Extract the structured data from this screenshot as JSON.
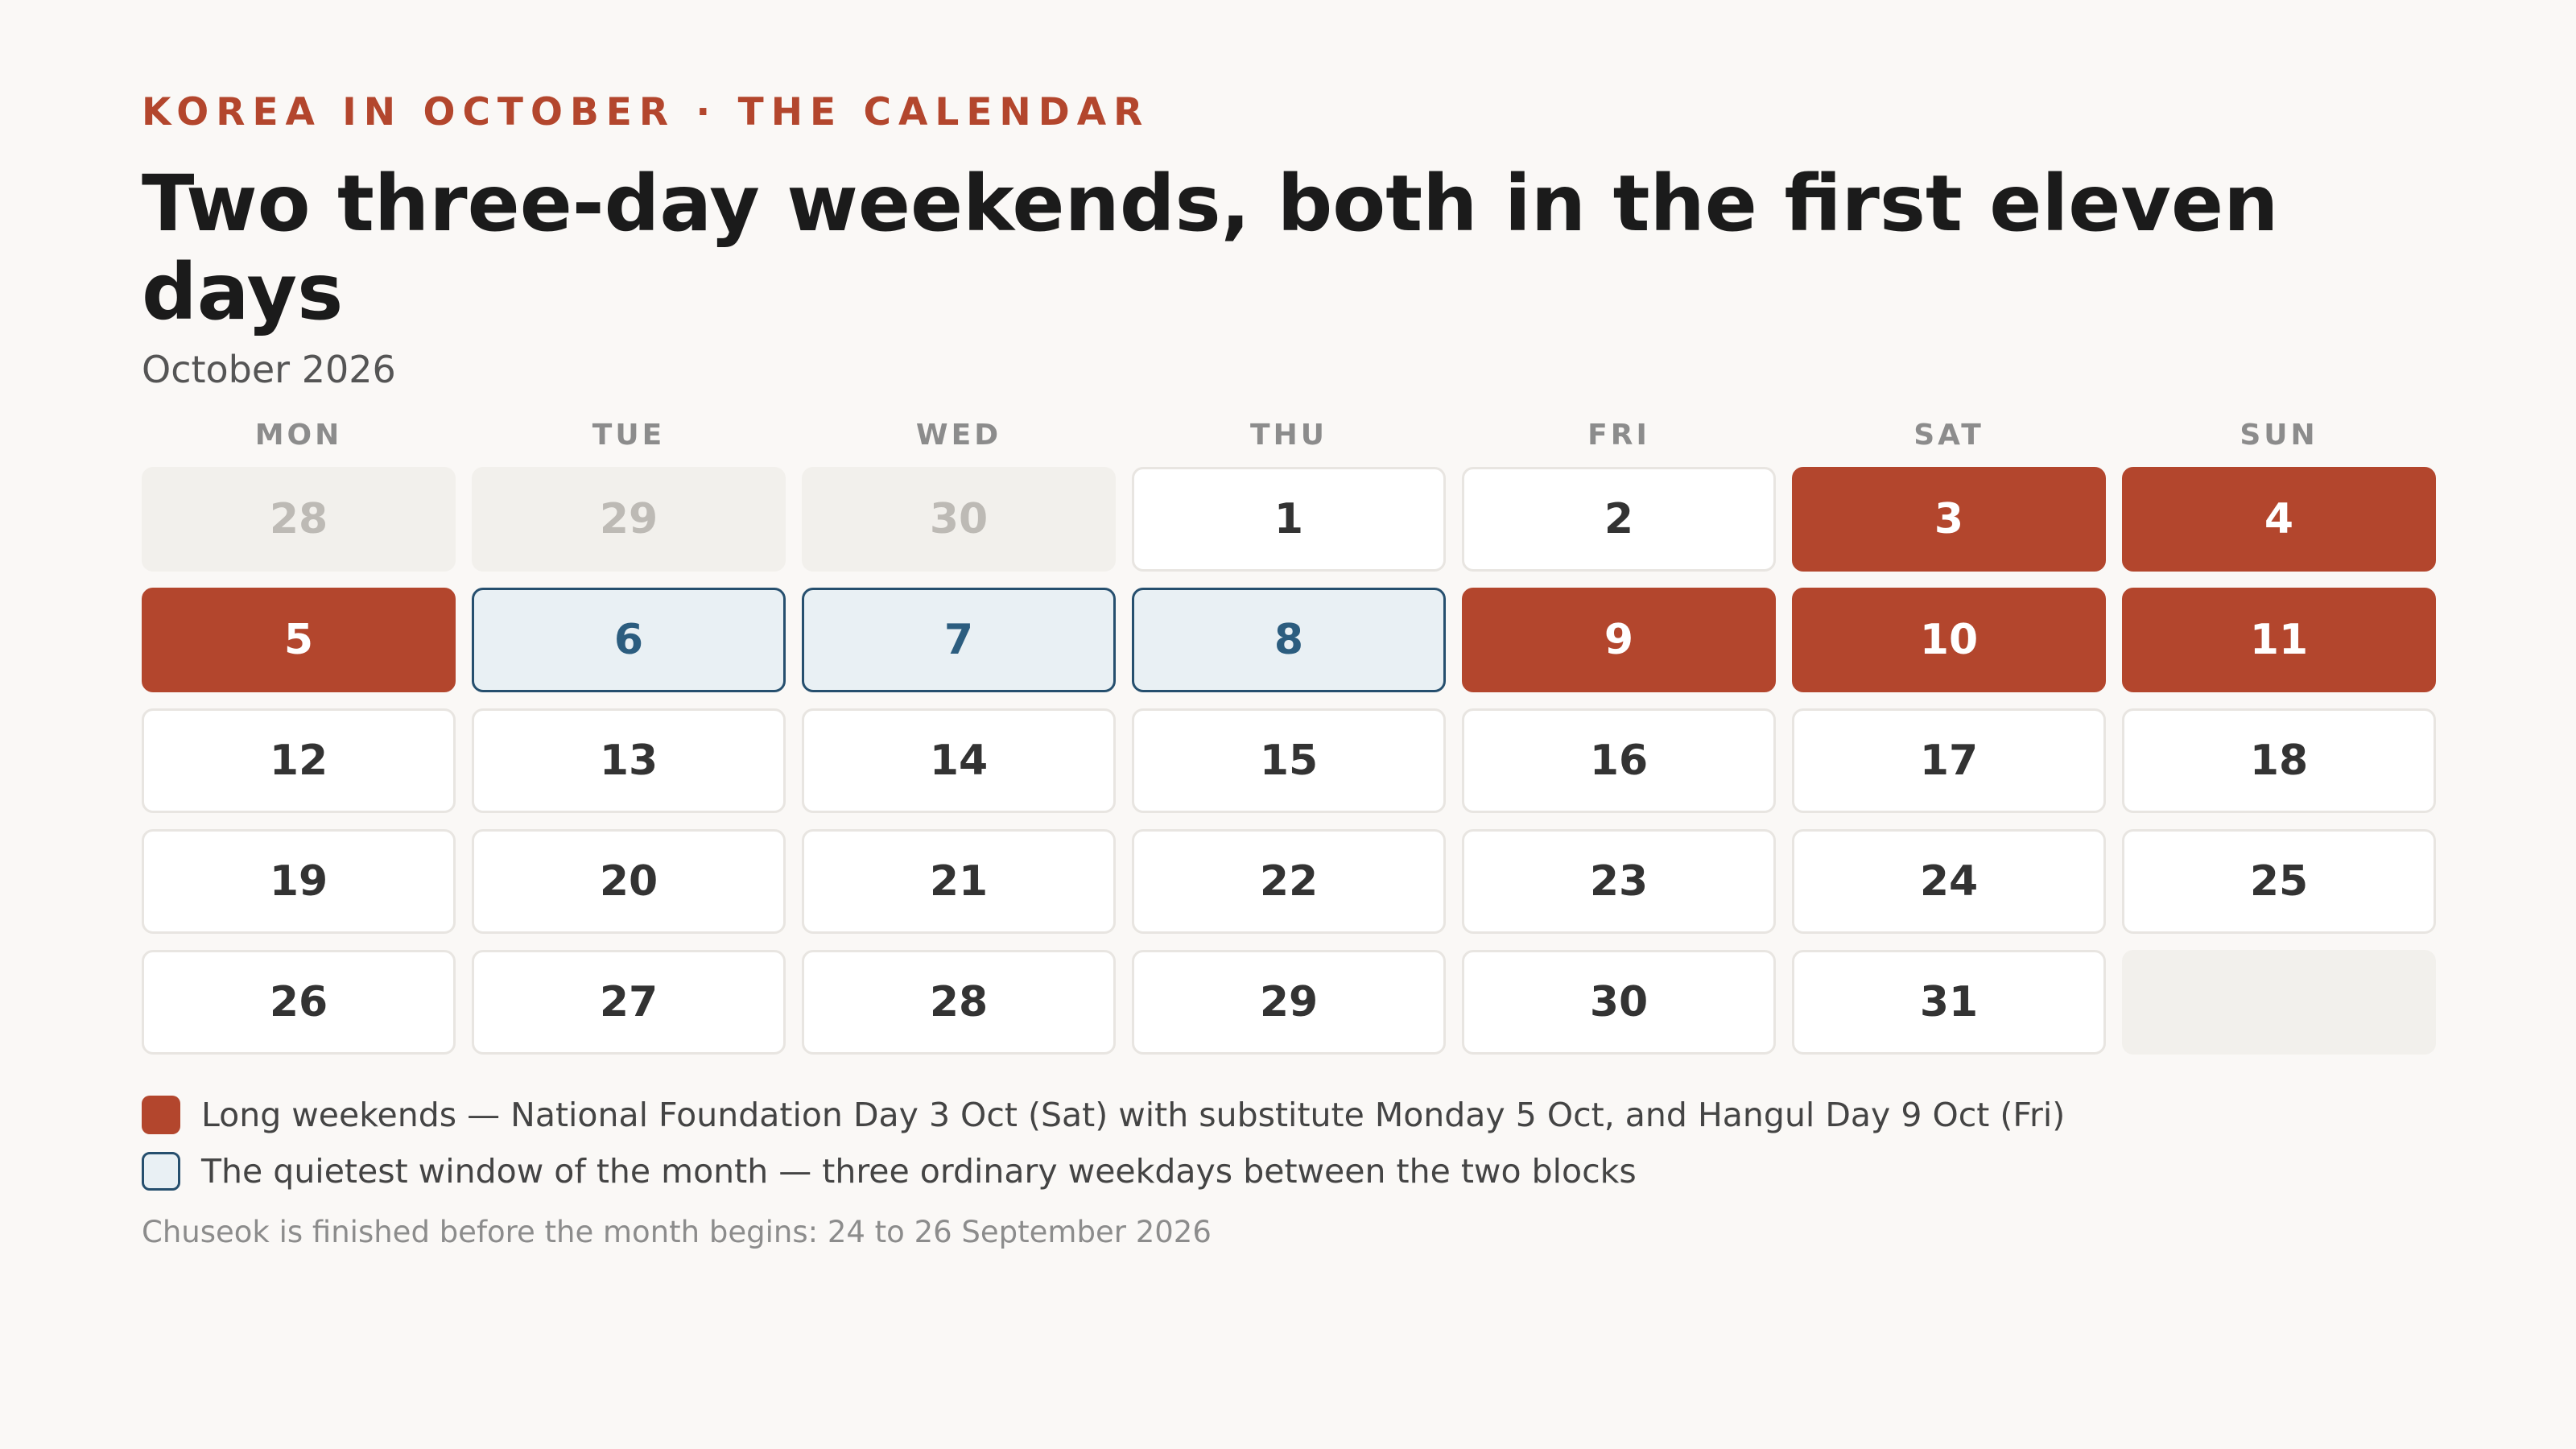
{
  "header": {
    "kicker": "KOREA IN OCTOBER · THE CALENDAR",
    "title": "Two three-day weekends, both in the first eleven days",
    "subtitle": "October 2026"
  },
  "calendar": {
    "weekdays": [
      "MON",
      "TUE",
      "WED",
      "THU",
      "FRI",
      "SAT",
      "SUN"
    ],
    "days": [
      {
        "label": "28",
        "type": "outside"
      },
      {
        "label": "29",
        "type": "outside"
      },
      {
        "label": "30",
        "type": "outside"
      },
      {
        "label": "1",
        "type": "normal"
      },
      {
        "label": "2",
        "type": "normal"
      },
      {
        "label": "3",
        "type": "holiday"
      },
      {
        "label": "4",
        "type": "holiday"
      },
      {
        "label": "5",
        "type": "holiday"
      },
      {
        "label": "6",
        "type": "quiet"
      },
      {
        "label": "7",
        "type": "quiet"
      },
      {
        "label": "8",
        "type": "quiet"
      },
      {
        "label": "9",
        "type": "holiday"
      },
      {
        "label": "10",
        "type": "holiday"
      },
      {
        "label": "11",
        "type": "holiday"
      },
      {
        "label": "12",
        "type": "normal"
      },
      {
        "label": "13",
        "type": "normal"
      },
      {
        "label": "14",
        "type": "normal"
      },
      {
        "label": "15",
        "type": "normal"
      },
      {
        "label": "16",
        "type": "normal"
      },
      {
        "label": "17",
        "type": "normal"
      },
      {
        "label": "18",
        "type": "normal"
      },
      {
        "label": "19",
        "type": "normal"
      },
      {
        "label": "20",
        "type": "normal"
      },
      {
        "label": "21",
        "type": "normal"
      },
      {
        "label": "22",
        "type": "normal"
      },
      {
        "label": "23",
        "type": "normal"
      },
      {
        "label": "24",
        "type": "normal"
      },
      {
        "label": "25",
        "type": "normal"
      },
      {
        "label": "26",
        "type": "normal"
      },
      {
        "label": "27",
        "type": "normal"
      },
      {
        "label": "28",
        "type": "normal"
      },
      {
        "label": "29",
        "type": "normal"
      },
      {
        "label": "30",
        "type": "normal"
      },
      {
        "label": "31",
        "type": "normal"
      },
      {
        "label": "",
        "type": "empty"
      }
    ]
  },
  "legend": {
    "holiday": "Long weekends — National Foundation Day 3 Oct (Sat) with substitute Monday 5 Oct, and Hangul Day 9 Oct (Fri)",
    "quiet": "The quietest window of the month — three ordinary weekdays between the two blocks"
  },
  "note": "Chuseok is finished before the month begins: 24 to 26 September 2026",
  "colors": {
    "holiday": "#b3462d",
    "quiet_fill": "#e9f0f4",
    "quiet_border": "#264f6e",
    "background": "#faf8f6"
  }
}
